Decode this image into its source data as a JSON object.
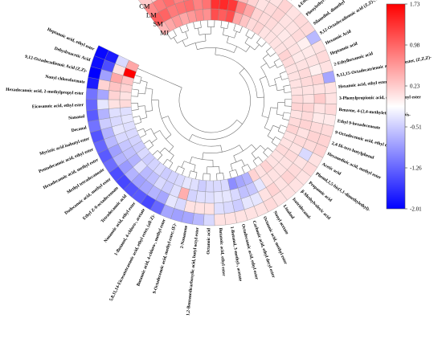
{
  "chart_data": {
    "type": "heatmap",
    "layout": "circular",
    "tree": "dendrogram",
    "rows": [
      "CM",
      "LM",
      "SM",
      "MJ"
    ],
    "features": [
      "1-Butanol, 3-methyl-",
      "Octanoic acid, ethyl ester",
      "Dodecanoic acid, ethyl ester",
      "Tetradecanoic acid, ethyl ester",
      "Hexadecanoic acid, ethyl ester",
      "Linoleic acid, ethyl ester",
      "Decanoic acid, ethyl ester",
      "Ethanol",
      "1-Pentanol",
      "Ethyl Acetate",
      "2,3-Butanediol",
      "Ferulic acid",
      "Ethyl 3-methylvalerate",
      "Ethyl benzoate",
      "Propylmalonic acid",
      "4-Ethyl-2-methoxyphenol",
      "Phenylethyl Alcohol",
      "Silanediol, dimethyl",
      "9,12-Octadecadienoic acid (Z,Z)-, methyl ester",
      "Hexanoic Acid",
      "Heptanoic acid",
      "2-Ethylhexanoic acid",
      "9,12,15-Octadecatrienoic acid, ethyl ester, (Z,Z,Z)-",
      "Hexanoic acid, ethyl ester",
      "3-Phenylpropionic acid, dodec-9-ynyl ester",
      "Benzene, 4-(2,4-methylethylidene)bis-",
      "Ethyl 9-hexadecenoate",
      "9-Octadecenoic acid, ethyl ester, (E)-",
      "2,4-Di-tert-butylphenol",
      "Hexanedioic acid, methyl ester",
      "Acetic acid",
      "Phenol,2,5-bis(1,1-dimethylethyl)-",
      "Propanoic acid",
      "β-Methylvaleric acid",
      "Isotridecanol-",
      "Linalool",
      "Nonyl acetate",
      "Octanoic acid, methyl ester",
      "Carbonic acid, ethyl decyl ester",
      "Octadecanoic acid, ethyl ester",
      "1-Butanol, 3-methyl-, acetate",
      "Butanoic acid, ethyl ester",
      "Octanoic acid",
      "1,2-Benzenedicarboxylic acid, butyl octyl ester",
      "2-Nonanone",
      "9-Octadecenoic acid, methyl ester, (E)-",
      "Butanoic acid, 4-chloro-, methyl ester",
      "5,8,11,14-Eicosatetraenoic acid, ethyl ester, (all-Z)-",
      "1-Butanol, 4-chloro-, acetate",
      "Nonanoic acid, ethyl ester",
      "Tetradecanoic acid",
      "Ethyl Z-9-octadecenoate",
      "Dodecanoic acid, methyl ester",
      "Methyl tetradecanoate",
      "Hexadecanoic acid, methyl ester",
      "Pentadecanoic acid, ethyl ester",
      "Myristic acid isobutyl ester",
      "Decanal",
      "Nonanal",
      "Eicosanoic acid, ethyl ester",
      "Hexadecanoic acid, 2-methylpropyl ester",
      "Nonyl chloroformate",
      "9,12-Octadecadienoic Acid (Z,Z)-",
      "Dehydroacetic Acid",
      "Heptanoic acid, ethyl ester"
    ],
    "values": [
      [
        0.35,
        0.3,
        0.4,
        0.3,
        0.4,
        0.3,
        0.4,
        0.25,
        0.3,
        0.45,
        0.3,
        0.2,
        0.2,
        0.2,
        0.3,
        0.2,
        0.25,
        0.25,
        -0.55,
        0.2,
        0.25,
        0.2,
        -0.7,
        0.2,
        0.2,
        0.25,
        0.15,
        0.25,
        0.3,
        0.3,
        0.2,
        0.25,
        0.2,
        0.2,
        0.2,
        0.2,
        0.25,
        0.2,
        0.2,
        0.2,
        0.2,
        0.2,
        -0.3,
        -0.55,
        -0.7,
        -0.75,
        -0.7,
        -1.2,
        -1.45,
        -1.3,
        -1.35,
        -1.45,
        -1.4,
        -1.15,
        -1.3,
        -1.2,
        -1.35,
        -1.1,
        -1.3,
        -1.2,
        -1.1,
        -1.8,
        -2.01,
        -1.9,
        -1.95
      ],
      [
        0.8,
        0.9,
        1.0,
        0.85,
        0.9,
        1.0,
        0.85,
        0.55,
        0.6,
        0.65,
        0.45,
        0.3,
        0.2,
        0.25,
        0.3,
        0.2,
        0.2,
        0.25,
        0.1,
        0.15,
        0.2,
        0.1,
        0.3,
        0.2,
        0.35,
        0.2,
        0.15,
        0.25,
        0.3,
        0.25,
        -0.3,
        0.2,
        0.25,
        0.3,
        0.2,
        0.3,
        0.2,
        -0.2,
        -0.2,
        -0.4,
        -0.3,
        -0.25,
        0.2,
        0.2,
        0.2,
        -0.3,
        -0.2,
        -0.7,
        -0.6,
        -0.7,
        -0.75,
        -0.6,
        -0.8,
        -0.6,
        -0.75,
        -0.55,
        -0.6,
        -0.4,
        -0.6,
        -0.2,
        -0.7,
        0.3,
        -0.75,
        -1.4,
        -1.8
      ],
      [
        1.1,
        1.05,
        0.9,
        0.95,
        1.0,
        0.85,
        0.95,
        1.4,
        1.45,
        1.35,
        0.85,
        0.6,
        0.3,
        0.25,
        0.25,
        0.2,
        0.15,
        0.2,
        0.2,
        0.15,
        0.2,
        0.25,
        0.25,
        0.2,
        0.2,
        0.3,
        0.25,
        0.3,
        0.2,
        0.25,
        0.2,
        0.25,
        0.2,
        0.2,
        0.2,
        0.2,
        -0.2,
        -0.45,
        -0.5,
        -0.3,
        -0.2,
        -0.2,
        -0.25,
        -0.25,
        -0.35,
        0.55,
        -0.25,
        -0.4,
        -0.3,
        -0.5,
        -0.55,
        -0.25,
        -0.6,
        -0.5,
        -0.45,
        -0.3,
        -0.2,
        -0.3,
        -0.25,
        0.2,
        0.3,
        0.4,
        0.6,
        0.2,
        -0.3
      ],
      [
        0.5,
        0.6,
        0.7,
        0.6,
        0.7,
        0.8,
        0.75,
        1.2,
        1.1,
        1.2,
        0.6,
        0.4,
        0.25,
        0.3,
        0.2,
        0.2,
        0.2,
        0.2,
        0.3,
        0.25,
        0.2,
        0.2,
        0.2,
        0.2,
        0.25,
        0.3,
        0.2,
        0.25,
        0.3,
        0.2,
        0.2,
        0.25,
        0.2,
        0.2,
        0.3,
        0.2,
        0.3,
        -0.6,
        -0.7,
        -0.9,
        -0.3,
        -0.3,
        -0.3,
        -0.4,
        -0.25,
        -0.2,
        -0.3,
        -0.35,
        -0.4,
        -0.3,
        -0.35,
        -0.4,
        -0.3,
        -0.4,
        -0.35,
        -0.3,
        -0.25,
        -0.2,
        -0.25,
        0.25,
        0.2,
        0.3,
        0.4,
        1.73,
        0.6
      ]
    ],
    "colorbar": {
      "ticks": [
        "1.73",
        "0.98",
        "0.23",
        "-0.51",
        "-1.26",
        "-2.01"
      ],
      "min": -2.01,
      "max": 1.73,
      "colors": [
        "#0000ff",
        "#ffffff",
        "#ff0000"
      ]
    }
  }
}
